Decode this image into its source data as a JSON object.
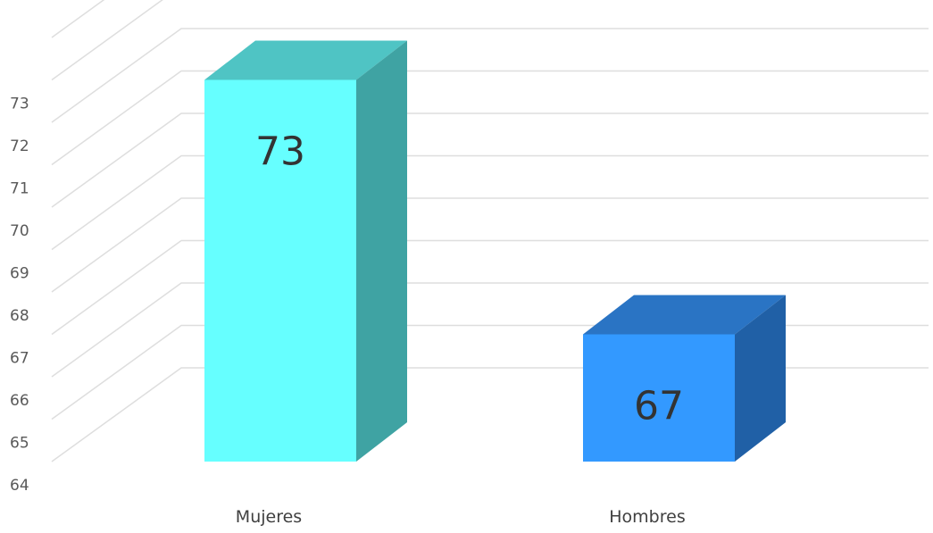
{
  "chart_data": {
    "type": "bar",
    "categories": [
      "Mujeres",
      "Hombres"
    ],
    "values": [
      73,
      67
    ],
    "title": "",
    "xlabel": "",
    "ylabel": "",
    "ylim": [
      64,
      73
    ],
    "yticks": [
      "64",
      "65",
      "66",
      "67",
      "68",
      "69",
      "70",
      "71",
      "72",
      "73"
    ],
    "data_labels": [
      "73",
      "67"
    ],
    "grid": true,
    "legend": "none",
    "style": "3d-column",
    "colors": {
      "front": [
        "#66ffff",
        "#3399ff"
      ],
      "top": [
        "#4fc4c4",
        "#2a74c4"
      ],
      "side": [
        "#3fa3a3",
        "#2060a6"
      ],
      "grid": "#dedede"
    }
  }
}
